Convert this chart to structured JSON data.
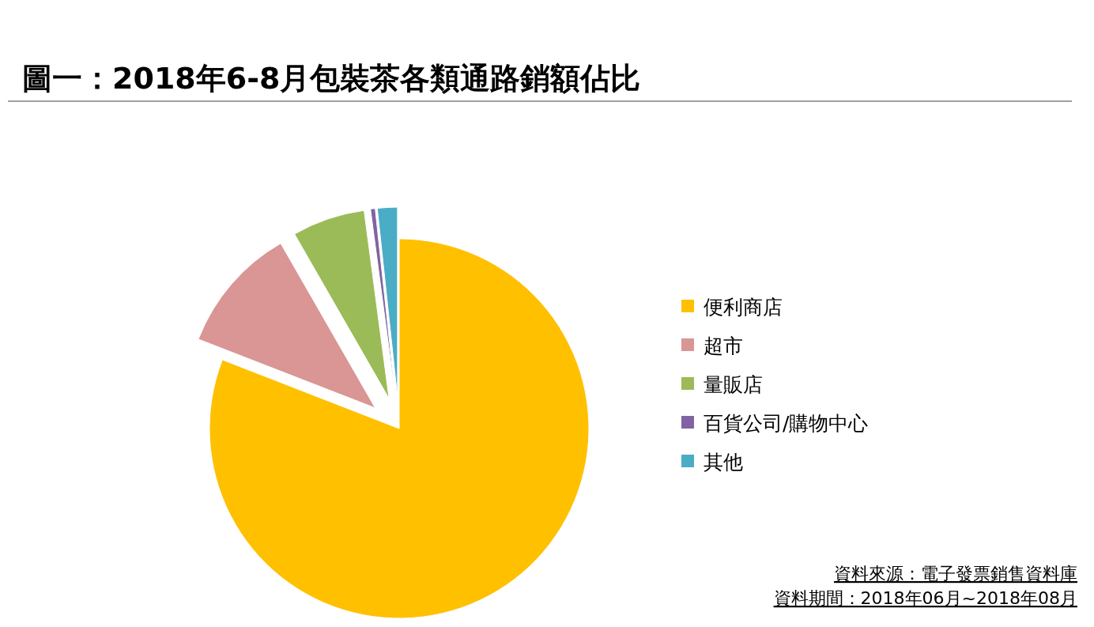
{
  "chart_data": {
    "type": "pie",
    "title": "圖一：2018年6-8月包裝茶各類通路銷額佔比",
    "categories": [
      "便利商店",
      "超市",
      "量販店",
      "百貨公司/購物中心",
      "其他"
    ],
    "values": [
      80.9,
      10.8,
      6.2,
      0.4,
      1.7
    ],
    "colors": [
      "#ffc000",
      "#d99694",
      "#9bbb59",
      "#8064a2",
      "#4bacc6"
    ],
    "legend": "right",
    "annotations": [
      "資料來源：電子發票銷售資料庫",
      "資料期間：2018年06月~2018年08月"
    ]
  }
}
